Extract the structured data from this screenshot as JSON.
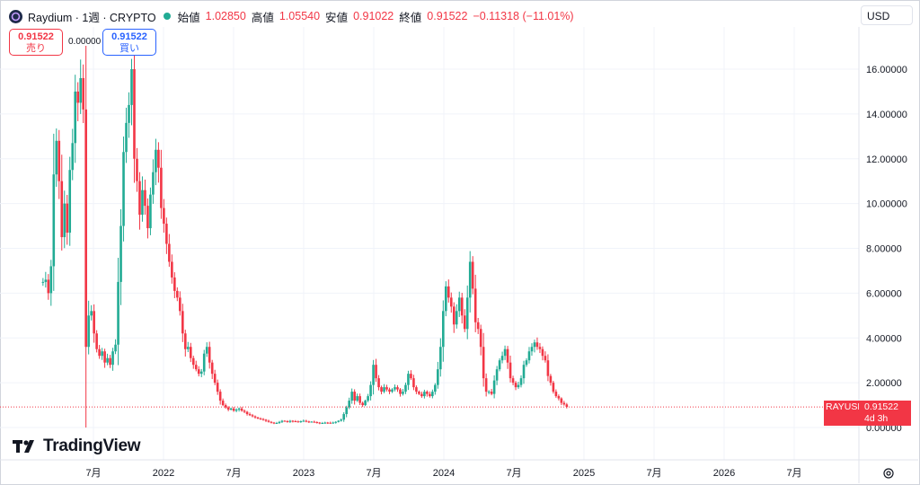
{
  "header": {
    "symbol_title": "Raydium · 1週 · CRYPTO",
    "open_label": "始値",
    "open_value": "1.02850",
    "high_label": "高値",
    "high_value": "1.05540",
    "low_label": "安値",
    "low_value": "0.91022",
    "close_label": "終値",
    "close_value": "0.91522",
    "change": "−0.11318 (−11.01%)",
    "currency": "USD"
  },
  "trade": {
    "sell_price": "0.91522",
    "sell_label": "売り",
    "spread": "0.00000",
    "buy_price": "0.91522",
    "buy_label": "買い"
  },
  "price_tag": {
    "symbol": "RAYUSD",
    "price": "0.91522",
    "countdown": "4d 3h"
  },
  "brand": {
    "name": "TradingView"
  },
  "colors": {
    "up": "#22ab94",
    "down": "#f23645",
    "grid": "#f0f3fa",
    "text": "#131722"
  },
  "chart_data": {
    "type": "candlestick",
    "symbol": "RAYUSD",
    "interval": "1週",
    "y_ticks": [
      "0.00000",
      "2.00000",
      "4.00000",
      "6.00000",
      "8.00000",
      "10.00000",
      "12.00000",
      "14.00000",
      "16.00000"
    ],
    "ylim": [
      -0.9,
      18.0
    ],
    "x_ticks": [
      {
        "label": "7月",
        "t": 2021.5
      },
      {
        "label": "2022",
        "t": 2022.0
      },
      {
        "label": "7月",
        "t": 2022.5
      },
      {
        "label": "2023",
        "t": 2023.0
      },
      {
        "label": "7月",
        "t": 2023.5
      },
      {
        "label": "2024",
        "t": 2024.0
      },
      {
        "label": "7月",
        "t": 2024.5
      },
      {
        "label": "2025",
        "t": 2025.0
      },
      {
        "label": "7月",
        "t": 2025.5
      },
      {
        "label": "2026",
        "t": 2026.0
      },
      {
        "label": "7月",
        "t": 2026.5
      }
    ],
    "x_start": 2021.14,
    "last_price": 0.91522,
    "close_path": [
      [
        0,
        6.5
      ],
      [
        1,
        6.6
      ],
      [
        2,
        6.0
      ],
      [
        3,
        7.2
      ],
      [
        4,
        11.3
      ],
      [
        5,
        12.8
      ],
      [
        6,
        11.0
      ],
      [
        7,
        8.5
      ],
      [
        8,
        10.0
      ],
      [
        9,
        8.7
      ],
      [
        10,
        11.5
      ],
      [
        11,
        12.7
      ],
      [
        12,
        15.0
      ],
      [
        13,
        14.5
      ],
      [
        14,
        15.6
      ],
      [
        15,
        14.2
      ],
      [
        16,
        3.6
      ],
      [
        17,
        5.0
      ],
      [
        18,
        5.2
      ],
      [
        19,
        4.2
      ],
      [
        20,
        3.5
      ],
      [
        21,
        3.2
      ],
      [
        22,
        3.4
      ],
      [
        23,
        2.9
      ],
      [
        24,
        3.1
      ],
      [
        25,
        2.8
      ],
      [
        26,
        3.4
      ],
      [
        27,
        3.7
      ],
      [
        28,
        6.5
      ],
      [
        29,
        9.0
      ],
      [
        30,
        12.3
      ],
      [
        31,
        13.6
      ],
      [
        32,
        14.4
      ],
      [
        33,
        16.0
      ],
      [
        34,
        12.0
      ],
      [
        35,
        11.0
      ],
      [
        36,
        9.5
      ],
      [
        37,
        10.6
      ],
      [
        38,
        9.9
      ],
      [
        39,
        8.9
      ],
      [
        40,
        10.4
      ],
      [
        41,
        11.4
      ],
      [
        42,
        12.4
      ],
      [
        43,
        11.6
      ],
      [
        44,
        9.8
      ],
      [
        45,
        9.1
      ],
      [
        46,
        8.2
      ],
      [
        47,
        7.4
      ],
      [
        48,
        6.7
      ],
      [
        49,
        6.1
      ],
      [
        50,
        5.8
      ],
      [
        51,
        5.2
      ],
      [
        52,
        4.2
      ],
      [
        53,
        3.5
      ],
      [
        54,
        3.6
      ],
      [
        55,
        3.1
      ],
      [
        56,
        2.8
      ],
      [
        57,
        2.6
      ],
      [
        58,
        2.4
      ],
      [
        59,
        2.5
      ],
      [
        60,
        3.3
      ],
      [
        61,
        3.6
      ],
      [
        62,
        2.9
      ],
      [
        63,
        2.4
      ],
      [
        64,
        2.0
      ],
      [
        65,
        1.6
      ],
      [
        66,
        1.2
      ],
      [
        67,
        1.0
      ],
      [
        68,
        0.9
      ],
      [
        69,
        0.8
      ],
      [
        70,
        0.85
      ],
      [
        71,
        0.75
      ],
      [
        72,
        0.8
      ],
      [
        73,
        0.85
      ],
      [
        74,
        0.75
      ],
      [
        75,
        0.7
      ],
      [
        76,
        0.6
      ],
      [
        77,
        0.55
      ],
      [
        78,
        0.5
      ],
      [
        79,
        0.45
      ],
      [
        80,
        0.4
      ],
      [
        81,
        0.38
      ],
      [
        82,
        0.35
      ],
      [
        83,
        0.3
      ],
      [
        84,
        0.25
      ],
      [
        85,
        0.22
      ],
      [
        86,
        0.2
      ],
      [
        87,
        0.2
      ],
      [
        88,
        0.25
      ],
      [
        89,
        0.3
      ],
      [
        90,
        0.28
      ],
      [
        91,
        0.25
      ],
      [
        92,
        0.3
      ],
      [
        93,
        0.28
      ],
      [
        94,
        0.27
      ],
      [
        95,
        0.26
      ],
      [
        96,
        0.28
      ],
      [
        97,
        0.3
      ],
      [
        98,
        0.27
      ],
      [
        99,
        0.25
      ],
      [
        100,
        0.26
      ],
      [
        101,
        0.24
      ],
      [
        102,
        0.22
      ],
      [
        103,
        0.2
      ],
      [
        104,
        0.2
      ],
      [
        105,
        0.22
      ],
      [
        106,
        0.21
      ],
      [
        107,
        0.2
      ],
      [
        108,
        0.22
      ],
      [
        109,
        0.25
      ],
      [
        110,
        0.3
      ],
      [
        111,
        0.35
      ],
      [
        112,
        0.6
      ],
      [
        113,
        0.9
      ],
      [
        114,
        1.2
      ],
      [
        115,
        1.6
      ],
      [
        116,
        1.2
      ],
      [
        117,
        1.4
      ],
      [
        118,
        1.1
      ],
      [
        119,
        1.0
      ],
      [
        120,
        1.2
      ],
      [
        121,
        1.4
      ],
      [
        122,
        1.9
      ],
      [
        123,
        2.8
      ],
      [
        124,
        2.2
      ],
      [
        125,
        1.8
      ],
      [
        126,
        1.6
      ],
      [
        127,
        1.8
      ],
      [
        128,
        1.7
      ],
      [
        129,
        1.6
      ],
      [
        130,
        1.7
      ],
      [
        131,
        1.8
      ],
      [
        132,
        1.7
      ],
      [
        133,
        1.5
      ],
      [
        134,
        1.6
      ],
      [
        135,
        1.9
      ],
      [
        136,
        2.4
      ],
      [
        137,
        2.2
      ],
      [
        138,
        1.8
      ],
      [
        139,
        1.6
      ],
      [
        140,
        1.5
      ],
      [
        141,
        1.4
      ],
      [
        142,
        1.6
      ],
      [
        143,
        1.5
      ],
      [
        144,
        1.4
      ],
      [
        145,
        1.6
      ],
      [
        146,
        1.9
      ],
      [
        147,
        2.6
      ],
      [
        148,
        3.6
      ],
      [
        149,
        5.2
      ],
      [
        150,
        6.3
      ],
      [
        151,
        5.8
      ],
      [
        152,
        5.4
      ],
      [
        153,
        4.6
      ],
      [
        154,
        5.2
      ],
      [
        155,
        5.8
      ],
      [
        156,
        5.0
      ],
      [
        157,
        4.4
      ],
      [
        158,
        5.8
      ],
      [
        159,
        7.4
      ],
      [
        160,
        6.2
      ],
      [
        161,
        4.7
      ],
      [
        162,
        4.4
      ],
      [
        163,
        3.6
      ],
      [
        164,
        2.2
      ],
      [
        165,
        1.6
      ],
      [
        166,
        1.6
      ],
      [
        167,
        1.5
      ],
      [
        168,
        2.1
      ],
      [
        169,
        2.6
      ],
      [
        170,
        3.0
      ],
      [
        171,
        3.2
      ],
      [
        172,
        3.5
      ],
      [
        173,
        2.9
      ],
      [
        174,
        2.2
      ],
      [
        175,
        2.0
      ],
      [
        176,
        1.8
      ],
      [
        177,
        1.9
      ],
      [
        178,
        2.2
      ],
      [
        179,
        2.8
      ],
      [
        180,
        3.0
      ],
      [
        181,
        3.4
      ],
      [
        182,
        3.6
      ],
      [
        183,
        3.8
      ],
      [
        184,
        3.6
      ],
      [
        185,
        3.5
      ],
      [
        186,
        3.2
      ],
      [
        187,
        3.0
      ],
      [
        188,
        2.3
      ],
      [
        189,
        2.0
      ],
      [
        190,
        1.6
      ],
      [
        191,
        1.4
      ],
      [
        192,
        1.3
      ],
      [
        193,
        1.1
      ],
      [
        194,
        1.03
      ],
      [
        195,
        0.92
      ]
    ]
  }
}
